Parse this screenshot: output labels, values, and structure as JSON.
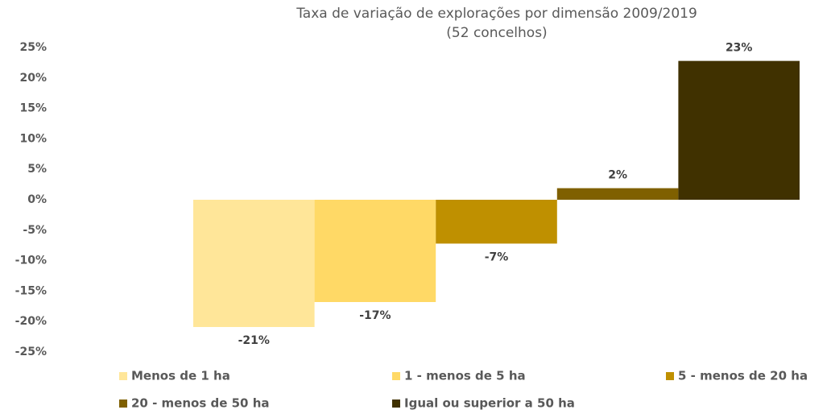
{
  "chart_data": {
    "type": "bar",
    "title": "Taxa de variação de explorações por dimensão 2009/2019",
    "subtitle": "(52 concelhos)",
    "series": [
      {
        "name": "Menos de 1 ha",
        "color": "#FFE699",
        "values": [
          -20.9
        ],
        "value_labels": [
          "-21%"
        ]
      },
      {
        "name": "1 - menos de 5 ha",
        "color": "#FFD966",
        "values": [
          -16.8
        ],
        "value_labels": [
          "-17%"
        ]
      },
      {
        "name": "5 - menos de 20 ha",
        "color": "#BF9000",
        "values": [
          -7.2
        ],
        "value_labels": [
          "-7%"
        ]
      },
      {
        "name": "20 - menos de 50 ha",
        "color": "#7F6000",
        "values": [
          1.9
        ],
        "value_labels": [
          "2%"
        ]
      },
      {
        "name": "Igual ou superior a 50 ha",
        "color": "#403100",
        "values": [
          22.8
        ],
        "value_labels": [
          "23%"
        ]
      }
    ],
    "ylim": [
      -25,
      25
    ],
    "yticks": [
      {
        "value": 25,
        "label": "25%"
      },
      {
        "value": 20,
        "label": "20%"
      },
      {
        "value": 15,
        "label": "15%"
      },
      {
        "value": 10,
        "label": "10%"
      },
      {
        "value": 5,
        "label": "5%"
      },
      {
        "value": 0,
        "label": "0%"
      },
      {
        "value": -5,
        "label": "-5%"
      },
      {
        "value": -10,
        "label": "-10%"
      },
      {
        "value": -15,
        "label": "-15%"
      },
      {
        "value": -20,
        "label": "-20%"
      },
      {
        "value": -25,
        "label": "-25%"
      }
    ],
    "grid": false,
    "legend": "bottom"
  }
}
